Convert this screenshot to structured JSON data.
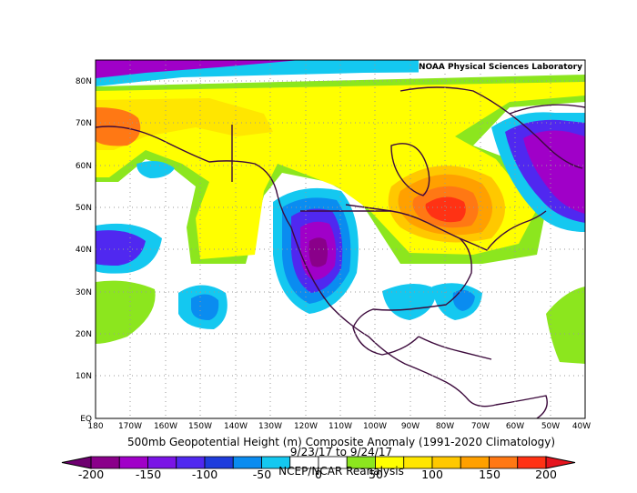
{
  "credit": "NOAA Physical Sciences Laboratory",
  "map": {
    "title_line1": "500mb Geopotential Height (m) Composite Anomaly (1991-2020 Climatology)",
    "title_line2": "9/23/17  to 9/24/17",
    "title_line3": "NCEP/NCAR Reanalysis",
    "lat_ticks": [
      "80N",
      "70N",
      "60N",
      "50N",
      "40N",
      "30N",
      "20N",
      "10N",
      "EQ"
    ],
    "lon_ticks": [
      "180",
      "170W",
      "160W",
      "150W",
      "140W",
      "130W",
      "120W",
      "110W",
      "100W",
      "90W",
      "80W",
      "70W",
      "60W",
      "50W",
      "40W"
    ]
  },
  "colorbar": {
    "labels": [
      "-200",
      "-150",
      "-100",
      "-50",
      "0",
      "50",
      "100",
      "150",
      "200"
    ],
    "colors": [
      "#8a008a",
      "#a000c8",
      "#7a14e6",
      "#5028f0",
      "#1e3cdc",
      "#0a8cf0",
      "#14c8f0",
      "#ffffff",
      "#ffffff",
      "#8ce61e",
      "#ffff00",
      "#ffe600",
      "#ffc800",
      "#ffa000",
      "#ff7814",
      "#ff3214"
    ]
  },
  "palette": {
    "coast": "#3c0a3c",
    "grid": "#999999"
  }
}
